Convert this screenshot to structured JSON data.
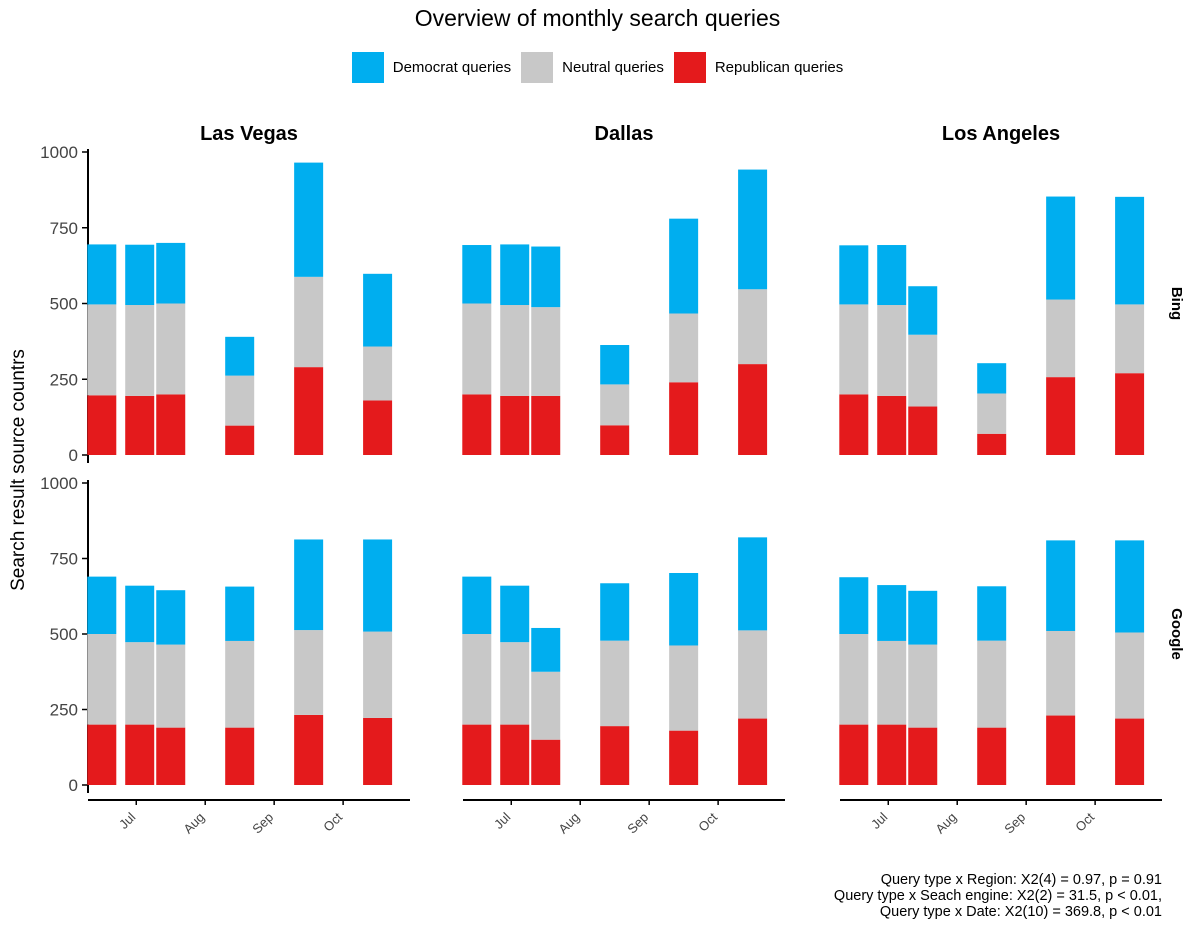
{
  "chart_data": {
    "type": "bar",
    "stacked": true,
    "title": "Overview of monthly search queries",
    "ylabel": "Search result source countrs",
    "xlabel": "",
    "ylim": [
      0,
      1000
    ],
    "yticks": [
      0,
      250,
      500,
      750,
      1000
    ],
    "x_ticks": [
      "Jul",
      "Aug",
      "Sep",
      "Oct"
    ],
    "xlim_months": [
      5.3,
      9.97
    ],
    "tick_months": [
      6,
      7,
      8,
      9
    ],
    "grid": false,
    "legend_position": "top",
    "legend": [
      {
        "key": "democrat",
        "label": "Democrat queries",
        "color": "#00aeef"
      },
      {
        "key": "neutral",
        "label": "Neutral queries",
        "color": "#c8c8c8"
      },
      {
        "key": "republican",
        "label": "Republican queries",
        "color": "#e41a1c"
      }
    ],
    "columns": [
      "Las Vegas",
      "Dallas",
      "Los Angeles"
    ],
    "rows": [
      "Bing",
      "Google"
    ],
    "panels": [
      {
        "column": "Las Vegas",
        "row": "Bing",
        "bars": [
          {
            "m": 5.5,
            "republican": 197,
            "neutral": 300,
            "democrat": 198
          },
          {
            "m": 6.05,
            "republican": 195,
            "neutral": 300,
            "democrat": 199
          },
          {
            "m": 6.5,
            "republican": 200,
            "neutral": 300,
            "democrat": 200
          },
          {
            "m": 7.5,
            "republican": 97,
            "neutral": 165,
            "democrat": 128
          },
          {
            "m": 8.5,
            "republican": 290,
            "neutral": 298,
            "democrat": 377
          },
          {
            "m": 9.5,
            "republican": 180,
            "neutral": 178,
            "democrat": 240
          }
        ]
      },
      {
        "column": "Dallas",
        "row": "Bing",
        "bars": [
          {
            "m": 5.5,
            "republican": 200,
            "neutral": 300,
            "democrat": 193
          },
          {
            "m": 6.05,
            "republican": 195,
            "neutral": 300,
            "democrat": 200
          },
          {
            "m": 6.5,
            "republican": 195,
            "neutral": 293,
            "democrat": 200
          },
          {
            "m": 7.5,
            "republican": 98,
            "neutral": 135,
            "democrat": 130
          },
          {
            "m": 8.5,
            "republican": 240,
            "neutral": 227,
            "democrat": 313
          },
          {
            "m": 9.5,
            "republican": 300,
            "neutral": 247,
            "democrat": 395
          }
        ]
      },
      {
        "column": "Los Angeles",
        "row": "Bing",
        "bars": [
          {
            "m": 5.5,
            "republican": 200,
            "neutral": 297,
            "democrat": 195
          },
          {
            "m": 6.05,
            "republican": 195,
            "neutral": 300,
            "democrat": 198
          },
          {
            "m": 6.5,
            "republican": 160,
            "neutral": 237,
            "democrat": 160
          },
          {
            "m": 7.5,
            "republican": 70,
            "neutral": 133,
            "democrat": 100
          },
          {
            "m": 8.5,
            "republican": 257,
            "neutral": 256,
            "democrat": 340
          },
          {
            "m": 9.5,
            "republican": 270,
            "neutral": 227,
            "democrat": 355
          }
        ]
      },
      {
        "column": "Las Vegas",
        "row": "Google",
        "bars": [
          {
            "m": 5.5,
            "republican": 200,
            "neutral": 300,
            "democrat": 190
          },
          {
            "m": 6.05,
            "republican": 200,
            "neutral": 273,
            "democrat": 187
          },
          {
            "m": 6.5,
            "republican": 190,
            "neutral": 275,
            "democrat": 180
          },
          {
            "m": 7.5,
            "republican": 190,
            "neutral": 287,
            "democrat": 180
          },
          {
            "m": 8.5,
            "republican": 232,
            "neutral": 281,
            "democrat": 300
          },
          {
            "m": 9.5,
            "republican": 222,
            "neutral": 286,
            "democrat": 305
          }
        ]
      },
      {
        "column": "Dallas",
        "row": "Google",
        "bars": [
          {
            "m": 5.5,
            "republican": 200,
            "neutral": 300,
            "democrat": 190
          },
          {
            "m": 6.05,
            "republican": 200,
            "neutral": 273,
            "democrat": 187
          },
          {
            "m": 6.5,
            "republican": 150,
            "neutral": 225,
            "democrat": 145
          },
          {
            "m": 7.5,
            "republican": 195,
            "neutral": 283,
            "democrat": 190
          },
          {
            "m": 8.5,
            "republican": 180,
            "neutral": 282,
            "democrat": 240
          },
          {
            "m": 9.5,
            "republican": 220,
            "neutral": 292,
            "democrat": 308
          }
        ]
      },
      {
        "column": "Los Angeles",
        "row": "Google",
        "bars": [
          {
            "m": 5.5,
            "republican": 200,
            "neutral": 300,
            "democrat": 188
          },
          {
            "m": 6.05,
            "republican": 200,
            "neutral": 277,
            "democrat": 185
          },
          {
            "m": 6.5,
            "republican": 190,
            "neutral": 275,
            "democrat": 178
          },
          {
            "m": 7.5,
            "republican": 190,
            "neutral": 288,
            "democrat": 180
          },
          {
            "m": 8.5,
            "republican": 230,
            "neutral": 280,
            "democrat": 300
          },
          {
            "m": 9.5,
            "republican": 220,
            "neutral": 285,
            "democrat": 305
          }
        ]
      }
    ]
  },
  "notes": [
    "Query type x Region: X2(4) = 0.97, p = 0.91",
    "Query type x Seach engine: X2(2) = 31.5, p < 0.01,",
    "Query type x Date: X2(10) = 369.8, p < 0.01"
  ]
}
